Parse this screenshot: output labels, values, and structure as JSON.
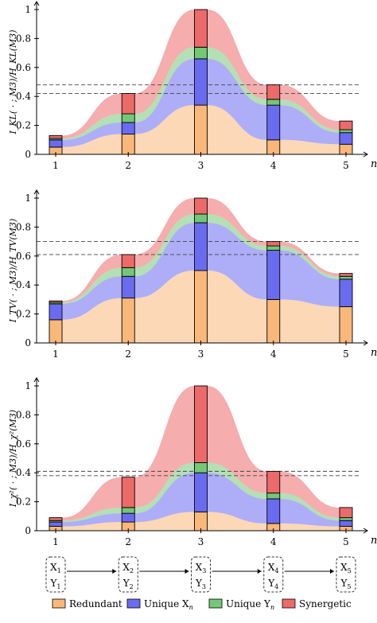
{
  "chart_data": [
    {
      "type": "bar",
      "panel": "top",
      "ylabel": "I_KL( · ; M3)/H_KL(M3)",
      "xlabel": "n",
      "x": [
        1,
        2,
        3,
        4,
        5
      ],
      "ylim": [
        0,
        1
      ],
      "yticks": [
        0,
        0.2,
        0.4,
        0.6,
        0.8,
        1
      ],
      "ytick_labels": [
        "0",
        "0.2",
        "0.4",
        "0.6",
        "0.8",
        "1"
      ],
      "hlines": [
        0.48,
        0.42
      ],
      "series": [
        {
          "name": "Redundant",
          "values": [
            0.05,
            0.14,
            0.34,
            0.1,
            0.07
          ]
        },
        {
          "name": "Unique Xn",
          "values": [
            0.05,
            0.08,
            0.32,
            0.24,
            0.08
          ]
        },
        {
          "name": "Unique Yn",
          "values": [
            0.01,
            0.06,
            0.08,
            0.04,
            0.02
          ]
        },
        {
          "name": "Synergetic",
          "values": [
            0.02,
            0.14,
            0.26,
            0.1,
            0.06
          ]
        }
      ]
    },
    {
      "type": "bar",
      "panel": "middle",
      "ylabel": "I_TV( · ; M3)/H_TV(M3)",
      "xlabel": "n",
      "x": [
        1,
        2,
        3,
        4,
        5
      ],
      "ylim": [
        0,
        1
      ],
      "yticks": [
        0,
        0.2,
        0.4,
        0.6,
        0.8,
        1
      ],
      "ytick_labels": [
        "0",
        "0.2",
        "0.4",
        "0.6",
        "0.8",
        "1"
      ],
      "hlines": [
        0.7,
        0.61
      ],
      "series": [
        {
          "name": "Redundant",
          "values": [
            0.16,
            0.31,
            0.5,
            0.3,
            0.25
          ]
        },
        {
          "name": "Unique Xn",
          "values": [
            0.11,
            0.15,
            0.33,
            0.34,
            0.19
          ]
        },
        {
          "name": "Unique Yn",
          "values": [
            0.01,
            0.06,
            0.06,
            0.03,
            0.02
          ]
        },
        {
          "name": "Synergetic",
          "values": [
            0.01,
            0.09,
            0.11,
            0.03,
            0.02
          ]
        }
      ]
    },
    {
      "type": "bar",
      "panel": "bottom",
      "ylabel": "I_χ²( · ; M3)/H_χ²(M3)",
      "xlabel": "n",
      "x": [
        1,
        2,
        3,
        4,
        5
      ],
      "ylim": [
        0,
        1
      ],
      "yticks": [
        0,
        0.2,
        0.4,
        0.6,
        0.8,
        1
      ],
      "ytick_labels": [
        "0",
        "0.2",
        "0.4",
        "0.6",
        "0.8",
        "1"
      ],
      "hlines": [
        0.41,
        0.38
      ],
      "series": [
        {
          "name": "Redundant",
          "values": [
            0.03,
            0.06,
            0.13,
            0.05,
            0.03
          ]
        },
        {
          "name": "Unique Xn",
          "values": [
            0.03,
            0.06,
            0.27,
            0.17,
            0.04
          ]
        },
        {
          "name": "Unique Yn",
          "values": [
            0.01,
            0.04,
            0.07,
            0.04,
            0.02
          ]
        },
        {
          "name": "Synergetic",
          "values": [
            0.02,
            0.21,
            0.53,
            0.15,
            0.07
          ]
        }
      ]
    }
  ],
  "colors": {
    "Redundant": "#f9b87a",
    "Unique Xn": "#6a6cf0",
    "Unique Yn": "#74c777",
    "Synergetic": "#ec6a6a"
  },
  "legend": [
    {
      "key": "Redundant",
      "label": "Redundant"
    },
    {
      "key": "Unique Xn",
      "label": "Unique X",
      "sub": "n"
    },
    {
      "key": "Unique Yn",
      "label": "Unique Y",
      "sub": "n"
    },
    {
      "key": "Synergetic",
      "label": "Synergetic"
    }
  ],
  "chain_nodes": [
    {
      "x": "X",
      "y": "Y",
      "sub": "1"
    },
    {
      "x": "X",
      "y": "Y",
      "sub": "2"
    },
    {
      "x": "X",
      "y": "Y",
      "sub": "3"
    },
    {
      "x": "X",
      "y": "Y",
      "sub": "4"
    },
    {
      "x": "X",
      "y": "Y",
      "sub": "5"
    }
  ]
}
